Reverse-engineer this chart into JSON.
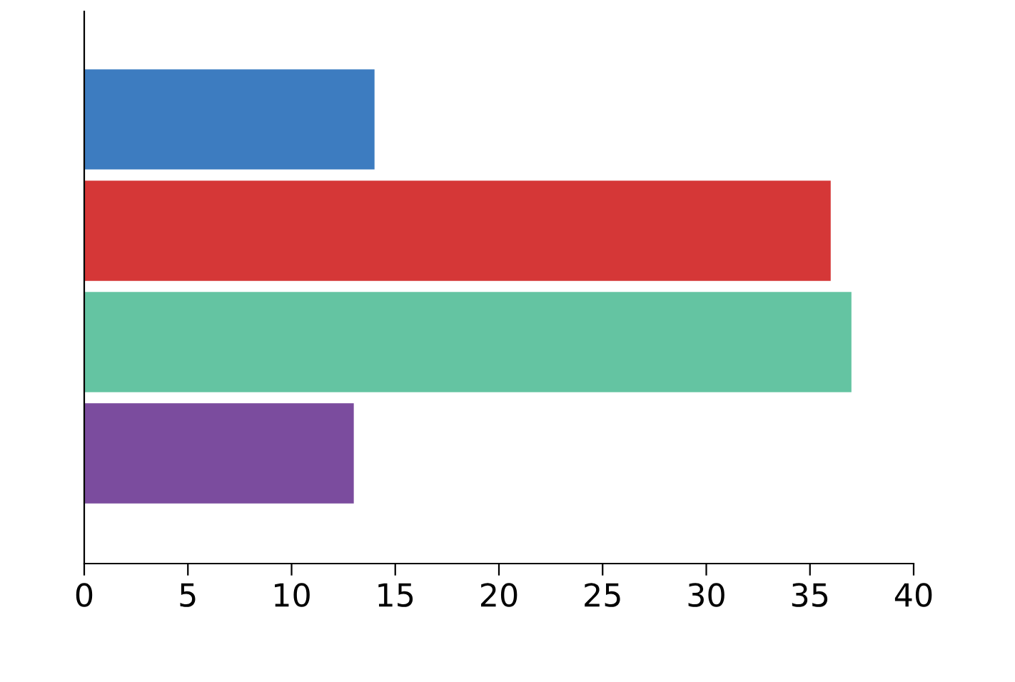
{
  "chart_data": {
    "type": "bar",
    "orientation": "horizontal",
    "categories": [
      null,
      null,
      null,
      null
    ],
    "values": [
      14,
      36,
      37,
      13
    ],
    "colors": [
      "#3d7cc0",
      "#d53737",
      "#64c4a2",
      "#7b4c9e"
    ],
    "xlim": [
      0,
      40
    ],
    "xticks": [
      0,
      5,
      10,
      15,
      20,
      25,
      30,
      35,
      40
    ],
    "grid": false,
    "legend": false
  }
}
